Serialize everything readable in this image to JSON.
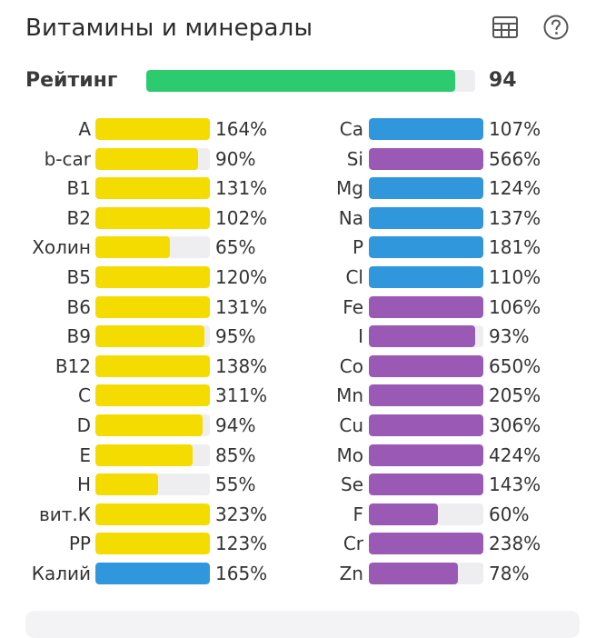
{
  "header": {
    "title": "Витамины и минералы",
    "table_icon": "table-icon",
    "help_icon": "help-icon"
  },
  "rating": {
    "label": "Рейтинг",
    "value": "94",
    "fill_percent": 94,
    "color": "#2dcb6f"
  },
  "colors": {
    "vitamin": "#f5dc00",
    "mineral_blue": "#3197dc",
    "mineral_purple": "#9b59b6",
    "track": "#eeeef1"
  },
  "vitamins": [
    {
      "name": "A",
      "pct": "164%",
      "value": 164,
      "color": "#f5dc00"
    },
    {
      "name": "b-car",
      "pct": "90%",
      "value": 90,
      "color": "#f5dc00"
    },
    {
      "name": "B1",
      "pct": "131%",
      "value": 131,
      "color": "#f5dc00"
    },
    {
      "name": "B2",
      "pct": "102%",
      "value": 102,
      "color": "#f5dc00"
    },
    {
      "name": "Холин",
      "pct": "65%",
      "value": 65,
      "color": "#f5dc00"
    },
    {
      "name": "B5",
      "pct": "120%",
      "value": 120,
      "color": "#f5dc00"
    },
    {
      "name": "B6",
      "pct": "131%",
      "value": 131,
      "color": "#f5dc00"
    },
    {
      "name": "B9",
      "pct": "95%",
      "value": 95,
      "color": "#f5dc00"
    },
    {
      "name": "B12",
      "pct": "138%",
      "value": 138,
      "color": "#f5dc00"
    },
    {
      "name": "C",
      "pct": "311%",
      "value": 311,
      "color": "#f5dc00"
    },
    {
      "name": "D",
      "pct": "94%",
      "value": 94,
      "color": "#f5dc00"
    },
    {
      "name": "E",
      "pct": "85%",
      "value": 85,
      "color": "#f5dc00"
    },
    {
      "name": "H",
      "pct": "55%",
      "value": 55,
      "color": "#f5dc00"
    },
    {
      "name": "вит.К",
      "pct": "323%",
      "value": 323,
      "color": "#f5dc00"
    },
    {
      "name": "PP",
      "pct": "123%",
      "value": 123,
      "color": "#f5dc00"
    },
    {
      "name": "Калий",
      "pct": "165%",
      "value": 165,
      "color": "#3197dc"
    }
  ],
  "minerals": [
    {
      "name": "Ca",
      "pct": "107%",
      "value": 107,
      "color": "#3197dc"
    },
    {
      "name": "Si",
      "pct": "566%",
      "value": 566,
      "color": "#9b59b6"
    },
    {
      "name": "Mg",
      "pct": "124%",
      "value": 124,
      "color": "#3197dc"
    },
    {
      "name": "Na",
      "pct": "137%",
      "value": 137,
      "color": "#3197dc"
    },
    {
      "name": "P",
      "pct": "181%",
      "value": 181,
      "color": "#3197dc"
    },
    {
      "name": "Cl",
      "pct": "110%",
      "value": 110,
      "color": "#3197dc"
    },
    {
      "name": "Fe",
      "pct": "106%",
      "value": 106,
      "color": "#9b59b6"
    },
    {
      "name": "I",
      "pct": "93%",
      "value": 93,
      "color": "#9b59b6"
    },
    {
      "name": "Co",
      "pct": "650%",
      "value": 650,
      "color": "#9b59b6"
    },
    {
      "name": "Mn",
      "pct": "205%",
      "value": 205,
      "color": "#9b59b6"
    },
    {
      "name": "Cu",
      "pct": "306%",
      "value": 306,
      "color": "#9b59b6"
    },
    {
      "name": "Mo",
      "pct": "424%",
      "value": 424,
      "color": "#9b59b6"
    },
    {
      "name": "Se",
      "pct": "143%",
      "value": 143,
      "color": "#9b59b6"
    },
    {
      "name": "F",
      "pct": "60%",
      "value": 60,
      "color": "#9b59b6"
    },
    {
      "name": "Cr",
      "pct": "238%",
      "value": 238,
      "color": "#9b59b6"
    },
    {
      "name": "Zn",
      "pct": "78%",
      "value": 78,
      "color": "#9b59b6"
    }
  ]
}
